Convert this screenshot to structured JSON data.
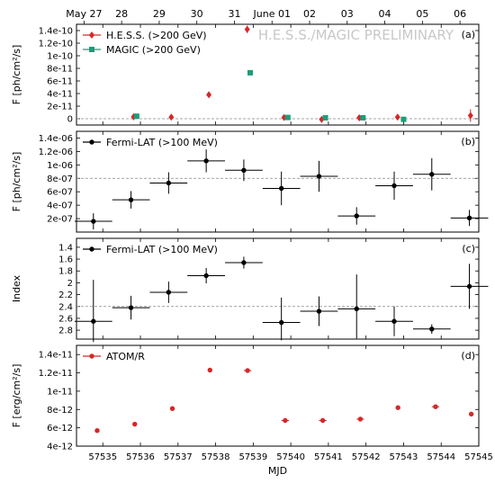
{
  "top_axis": {
    "labels": [
      "May 27",
      "28",
      "29",
      "30",
      "31",
      "June 01",
      "02",
      "03",
      "04",
      "05",
      "06"
    ],
    "mjd": [
      57534.5,
      57535.5,
      57536.5,
      57537.5,
      57538.5,
      57539.5,
      57540.5,
      57541.5,
      57542.5,
      57543.5,
      57544.5
    ]
  },
  "x_axis": {
    "label": "MJD",
    "lim": [
      57534.3,
      57545.0
    ],
    "ticks": [
      57535,
      57536,
      57537,
      57538,
      57539,
      57540,
      57541,
      57542,
      57543,
      57544,
      57545
    ],
    "tick_labels": [
      "57535",
      "57536",
      "57537",
      "57538",
      "57539",
      "57540",
      "57541",
      "57542",
      "57543",
      "57544",
      "57545"
    ]
  },
  "chart_data": [
    {
      "type": "scatter",
      "panel_label": "(a)",
      "watermark": "H.E.S.S./MAGIC PRELIMINARY",
      "ylabel": "F [ph/cm²/s]",
      "ylim": [
        -1e-11,
        1.5e-10
      ],
      "yticks": [
        0,
        2e-11,
        4e-11,
        6e-11,
        8e-11,
        1e-10,
        1.2e-10,
        1.4e-10
      ],
      "ytick_labels": [
        "0",
        "2e-11",
        "4e-11",
        "6e-11",
        "8e-11",
        "1e-10",
        "1.2e-10",
        "1.4e-10"
      ],
      "hline": 0,
      "legend_position": "top-left",
      "series": [
        {
          "name": "H.E.S.S. (>200 GeV)",
          "color": "#d62728",
          "marker": "diamond",
          "points": [
            {
              "x": 57535.82,
              "y": 3e-12,
              "yerr": 2e-12
            },
            {
              "x": 57536.82,
              "y": 2.5e-12,
              "yerr": 2e-12
            },
            {
              "x": 57537.82,
              "y": 3.8e-11,
              "yerr": 4e-12
            },
            {
              "x": 57538.84,
              "y": 1.42e-10,
              "yerr": 6e-12
            },
            {
              "x": 57539.82,
              "y": 2e-12,
              "yerr": 2e-12
            },
            {
              "x": 57540.82,
              "y": -1e-12,
              "yerr": 2e-12
            },
            {
              "x": 57541.82,
              "y": 1.5e-12,
              "yerr": 2e-12
            },
            {
              "x": 57542.84,
              "y": 2.5e-12,
              "yerr": 2e-12
            },
            {
              "x": 57544.78,
              "y": 5e-12,
              "yerr": 1e-11
            }
          ]
        },
        {
          "name": "MAGIC (>200 GeV)",
          "color": "#1a9e7a",
          "marker": "square",
          "points": [
            {
              "x": 57535.9,
              "y": 4e-12,
              "yerr": 2e-12
            },
            {
              "x": 57538.92,
              "y": 7.3e-11,
              "yerr": 2e-12
            },
            {
              "x": 57539.92,
              "y": 2e-12,
              "yerr": 1e-12
            },
            {
              "x": 57540.92,
              "y": 1.5e-12,
              "yerr": 1e-12
            },
            {
              "x": 57541.92,
              "y": 1.5e-12,
              "yerr": 1e-12
            },
            {
              "x": 57543.0,
              "y": -1e-12,
              "yerr": 1e-12
            }
          ]
        }
      ]
    },
    {
      "type": "scatter",
      "panel_label": "(b)",
      "ylabel": "F [ph/cm²/s]",
      "ylim": [
        0,
        1.5e-06
      ],
      "yticks": [
        2e-07,
        4e-07,
        6e-07,
        8e-07,
        1e-06,
        1.2e-06,
        1.4e-06
      ],
      "ytick_labels": [
        "2e-07",
        "4e-07",
        "6e-07",
        "8e-07",
        "1e-06",
        "1.2e-06",
        "1.4e-06"
      ],
      "hline": 8e-07,
      "legend_position": "top-left",
      "series": [
        {
          "name": "Fermi-LAT (>100 MeV)",
          "color": "#000000",
          "marker": "circle",
          "points": [
            {
              "x": 57534.75,
              "xerr": 0.5,
              "y": 1.6e-07,
              "yerr": 1.2e-07
            },
            {
              "x": 57535.75,
              "xerr": 0.5,
              "y": 4.8e-07,
              "yerr": 1.3e-07
            },
            {
              "x": 57536.75,
              "xerr": 0.5,
              "y": 7.3e-07,
              "yerr": 1.6e-07
            },
            {
              "x": 57537.75,
              "xerr": 0.5,
              "y": 1.06e-06,
              "yerr": 1.7e-07
            },
            {
              "x": 57538.75,
              "xerr": 0.5,
              "y": 9.2e-07,
              "yerr": 1.6e-07
            },
            {
              "x": 57539.75,
              "xerr": 0.5,
              "y": 6.5e-07,
              "yerr": 2.5e-07
            },
            {
              "x": 57540.75,
              "xerr": 0.5,
              "y": 8.3e-07,
              "yerr": 2.3e-07
            },
            {
              "x": 57541.75,
              "xerr": 0.5,
              "y": 2.4e-07,
              "yerr": 1.3e-07
            },
            {
              "x": 57542.75,
              "xerr": 0.5,
              "y": 6.9e-07,
              "yerr": 2.1e-07
            },
            {
              "x": 57543.75,
              "xerr": 0.5,
              "y": 8.6e-07,
              "yerr": 2.4e-07
            },
            {
              "x": 57544.75,
              "xerr": 0.5,
              "y": 2.1e-07,
              "yerr": 1.2e-07
            }
          ]
        }
      ]
    },
    {
      "type": "scatter",
      "panel_label": "(c)",
      "ylabel": "Index",
      "ylim": [
        1.25,
        2.95
      ],
      "y_inverted": true,
      "yticks": [
        1.4,
        1.6,
        1.8,
        2.0,
        2.2,
        2.4,
        2.6,
        2.8
      ],
      "ytick_labels": [
        "1.4",
        "1.6",
        "1.8",
        "2",
        "2.2",
        "2.4",
        "2.6",
        "2.8"
      ],
      "hline": 2.4,
      "legend_position": "top-left",
      "series": [
        {
          "name": "Fermi-LAT (>100 MeV)",
          "color": "#000000",
          "marker": "circle",
          "points": [
            {
              "x": 57534.75,
              "xerr": 0.5,
              "y": 2.65,
              "yerr_low": 0.7,
              "yerr_high": 0.35
            },
            {
              "x": 57535.75,
              "xerr": 0.5,
              "y": 2.42,
              "yerr": 0.2
            },
            {
              "x": 57536.75,
              "xerr": 0.5,
              "y": 2.16,
              "yerr": 0.18
            },
            {
              "x": 57537.75,
              "xerr": 0.5,
              "y": 1.88,
              "yerr": 0.13
            },
            {
              "x": 57538.75,
              "xerr": 0.5,
              "y": 1.66,
              "yerr": 0.1
            },
            {
              "x": 57539.75,
              "xerr": 0.5,
              "y": 2.67,
              "yerr_low": 0.42,
              "yerr_high": 0.3
            },
            {
              "x": 57540.75,
              "xerr": 0.5,
              "y": 2.48,
              "yerr": 0.25
            },
            {
              "x": 57541.75,
              "xerr": 0.5,
              "y": 2.44,
              "yerr_low": 0.58,
              "yerr_high": 0.5
            },
            {
              "x": 57542.75,
              "xerr": 0.5,
              "y": 2.65,
              "yerr": 0.25
            },
            {
              "x": 57543.75,
              "xerr": 0.5,
              "y": 2.78,
              "yerr": 0.08
            },
            {
              "x": 57544.75,
              "xerr": 0.5,
              "y": 2.06,
              "yerr": 0.38
            }
          ]
        }
      ]
    },
    {
      "type": "scatter",
      "panel_label": "(d)",
      "ylabel": "F [erg/cm²/s]",
      "ylim": [
        4e-12,
        1.5e-11
      ],
      "yticks": [
        4e-12,
        6e-12,
        8e-12,
        1e-11,
        1.2e-11,
        1.4e-11
      ],
      "ytick_labels": [
        "4e-12",
        "6e-12",
        "8e-12",
        "1e-11",
        "1.2e-11",
        "1.4e-11"
      ],
      "legend_position": "top-left",
      "series": [
        {
          "name": "ATOM/R",
          "color": "#d62728",
          "marker": "circle",
          "points": [
            {
              "x": 57534.85,
              "y": 5.7e-12
            },
            {
              "x": 57535.85,
              "y": 6.4e-12
            },
            {
              "x": 57536.85,
              "y": 8.1e-12
            },
            {
              "x": 57537.85,
              "y": 1.23e-11
            },
            {
              "x": 57538.85,
              "xerr": 0.1,
              "y": 1.225e-11
            },
            {
              "x": 57539.85,
              "xerr": 0.1,
              "y": 6.8e-12
            },
            {
              "x": 57540.85,
              "xerr": 0.1,
              "y": 6.8e-12
            },
            {
              "x": 57541.85,
              "xerr": 0.1,
              "y": 6.95e-12
            },
            {
              "x": 57542.85,
              "y": 8.2e-12
            },
            {
              "x": 57543.85,
              "xerr": 0.1,
              "y": 8.3e-12
            },
            {
              "x": 57544.8,
              "y": 7.5e-12
            }
          ]
        }
      ]
    }
  ]
}
